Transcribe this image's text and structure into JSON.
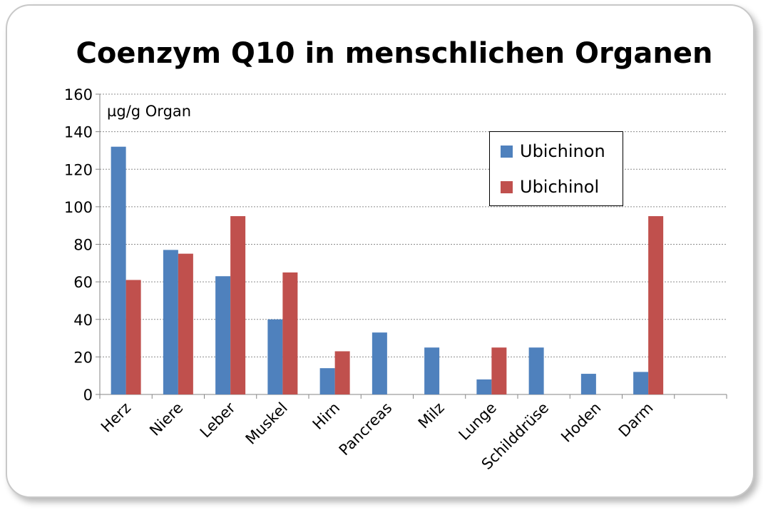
{
  "chart_data": {
    "type": "bar",
    "title": "Coenzym Q10 in menschlichen Organen",
    "unit_label": "µg/g Organ",
    "xlabel": "",
    "ylabel": "",
    "ylim": [
      0,
      160
    ],
    "yticks": [
      0,
      20,
      40,
      60,
      80,
      100,
      120,
      140,
      160
    ],
    "grid": true,
    "legend_position": "top-right",
    "categories": [
      "Herz",
      "Niere",
      "Leber",
      "Muskel",
      "Hirn",
      "Pancreas",
      "Milz",
      "Lunge",
      "Schilddrüse",
      "Hoden",
      "Darm",
      ""
    ],
    "series": [
      {
        "name": "Ubichinon",
        "color": "#4f81bd",
        "values": [
          132,
          77,
          63,
          40,
          14,
          33,
          25,
          8,
          25,
          11,
          12,
          null
        ]
      },
      {
        "name": "Ubichinol",
        "color": "#c0504d",
        "values": [
          61,
          75,
          95,
          65,
          23,
          null,
          null,
          25,
          null,
          null,
          95,
          null
        ]
      }
    ]
  }
}
